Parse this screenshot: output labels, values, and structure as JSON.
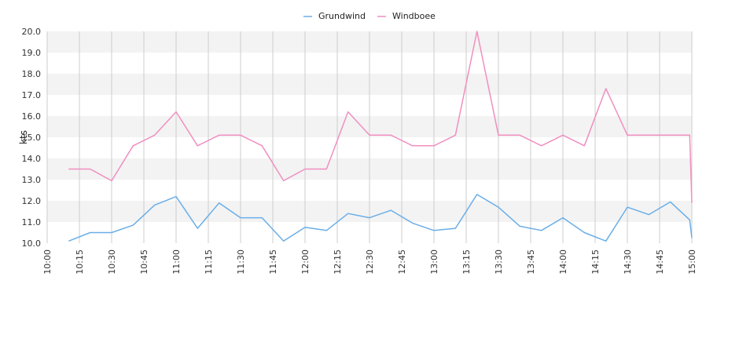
{
  "chart_data": {
    "type": "line",
    "ylabel": "kts",
    "xlabel": "",
    "ylim": [
      10.0,
      20.0
    ],
    "y_ticks": [
      "10.0",
      "11.0",
      "12.0",
      "13.0",
      "14.0",
      "15.0",
      "16.0",
      "17.0",
      "18.0",
      "19.0",
      "20.0"
    ],
    "x_ticks": [
      "10:00",
      "10:15",
      "10:30",
      "10:45",
      "11:00",
      "11:15",
      "11:30",
      "11:45",
      "12:00",
      "12:15",
      "12:30",
      "12:45",
      "13:00",
      "13:15",
      "13:30",
      "13:45",
      "14:00",
      "14:15",
      "14:30",
      "14:45",
      "15:00"
    ],
    "xlim": [
      "10:00",
      "15:00"
    ],
    "grid": true,
    "horizontal_bands": true,
    "legend_position": "top-center",
    "x": [
      "10:10",
      "10:20",
      "10:30",
      "10:40",
      "10:50",
      "11:00",
      "11:10",
      "11:20",
      "11:30",
      "11:40",
      "11:50",
      "12:00",
      "12:10",
      "12:20",
      "12:30",
      "12:40",
      "12:50",
      "13:00",
      "13:10",
      "13:20",
      "13:30",
      "13:40",
      "13:50",
      "14:00",
      "14:10",
      "14:20",
      "14:30",
      "14:40",
      "14:50",
      "14:59",
      "15:00"
    ],
    "series": [
      {
        "name": "Grundwind",
        "color": "#6aaee8",
        "values": [
          10.1,
          10.5,
          10.5,
          10.85,
          11.8,
          12.2,
          10.7,
          11.9,
          11.2,
          11.2,
          10.1,
          10.75,
          10.6,
          11.4,
          11.2,
          11.55,
          10.95,
          10.6,
          10.7,
          12.3,
          11.7,
          10.8,
          10.6,
          11.2,
          10.5,
          10.1,
          11.7,
          11.35,
          11.95,
          11.1,
          10.25
        ]
      },
      {
        "name": "Windboee",
        "color": "#f08fc0",
        "values": [
          13.5,
          13.5,
          12.95,
          14.6,
          15.1,
          16.2,
          14.6,
          15.1,
          15.1,
          14.6,
          12.95,
          13.5,
          13.5,
          16.2,
          15.1,
          15.1,
          14.6,
          14.6,
          15.1,
          20.0,
          15.1,
          15.1,
          14.6,
          15.1,
          14.6,
          17.3,
          15.1,
          15.1,
          15.1,
          15.1,
          11.9
        ]
      }
    ]
  }
}
